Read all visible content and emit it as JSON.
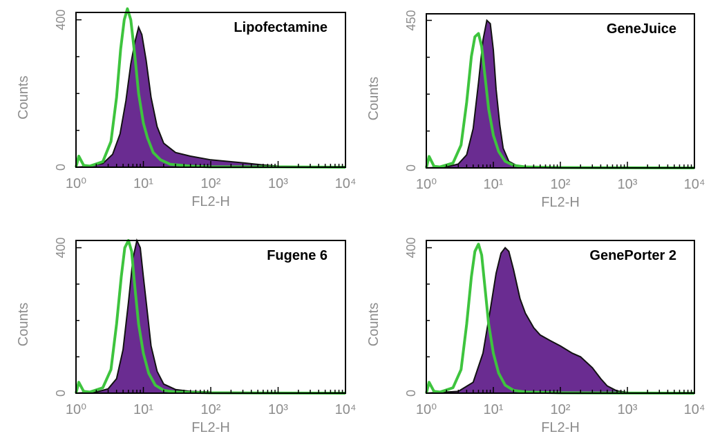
{
  "colors": {
    "filled": "#6a2c91",
    "outline": "#3ec43e",
    "axis": "#000000",
    "label": "#8c8c8c"
  },
  "chart_data": [
    {
      "type": "area",
      "title": "Lipofectamine",
      "xlabel": "FL2-H",
      "ylabel": "Counts",
      "xscale": "log",
      "xlim": [
        1,
        10000
      ],
      "ylim": [
        0,
        420
      ],
      "yticks": [
        0,
        400
      ],
      "xticks": [
        "10⁰",
        "10¹",
        "10²",
        "10³",
        "10⁴"
      ],
      "series": [
        {
          "style": "filled-purple",
          "x": [
            1,
            1.5,
            2.5,
            3.5,
            4.5,
            5.5,
            6.5,
            7.5,
            8.5,
            9.5,
            11,
            13,
            16,
            20,
            30,
            50,
            100,
            300,
            600,
            1000,
            3000,
            10000
          ],
          "values": [
            0,
            2,
            10,
            35,
            90,
            180,
            280,
            340,
            380,
            360,
            290,
            190,
            110,
            65,
            40,
            30,
            20,
            12,
            6,
            3,
            1,
            0
          ]
        },
        {
          "style": "outline-green",
          "x": [
            1,
            1.1,
            1.3,
            1.6,
            2.5,
            3.3,
            4,
            4.6,
            5.2,
            5.8,
            6.5,
            7.5,
            8.5,
            10,
            11.5,
            14,
            18,
            25,
            50,
            100,
            1000,
            10000
          ],
          "values": [
            0,
            30,
            5,
            3,
            15,
            70,
            190,
            320,
            400,
            430,
            400,
            300,
            200,
            120,
            80,
            40,
            20,
            8,
            3,
            1,
            1,
            0
          ]
        }
      ]
    },
    {
      "type": "area",
      "title": "GeneJuice",
      "xlabel": "FL2-H",
      "ylabel": "Counts",
      "xscale": "log",
      "xlim": [
        1,
        10000
      ],
      "ylim": [
        0,
        470
      ],
      "yticks": [
        0,
        450
      ],
      "xticks": [
        "10⁰",
        "10¹",
        "10²",
        "10³",
        "10⁴"
      ],
      "series": [
        {
          "style": "filled-purple",
          "x": [
            1,
            2,
            3,
            4,
            5,
            6,
            7,
            8,
            9,
            10,
            11,
            12.5,
            14,
            17,
            22,
            30,
            100,
            1000,
            10000
          ],
          "values": [
            0,
            3,
            12,
            40,
            120,
            260,
            390,
            450,
            440,
            360,
            240,
            130,
            60,
            20,
            8,
            3,
            2,
            1,
            0
          ]
        },
        {
          "style": "outline-green",
          "x": [
            1,
            1.1,
            1.3,
            1.6,
            2.5,
            3.3,
            4,
            4.7,
            5.3,
            6,
            6.7,
            7.5,
            8.5,
            10,
            12,
            15,
            20,
            30,
            100,
            10000
          ],
          "values": [
            0,
            35,
            5,
            3,
            15,
            70,
            200,
            340,
            400,
            410,
            370,
            280,
            180,
            100,
            50,
            20,
            8,
            3,
            1,
            0
          ]
        }
      ]
    },
    {
      "type": "area",
      "title": "Fugene 6",
      "xlabel": "FL2-H",
      "ylabel": "Counts",
      "xscale": "log",
      "xlim": [
        1,
        10000
      ],
      "ylim": [
        0,
        420
      ],
      "yticks": [
        0,
        400
      ],
      "xticks": [
        "10⁰",
        "10¹",
        "10²",
        "10³",
        "10⁴"
      ],
      "series": [
        {
          "style": "filled-purple",
          "x": [
            1,
            2,
            3,
            4,
            5,
            6,
            7,
            8,
            9,
            10,
            11.5,
            13,
            16,
            20,
            30,
            50,
            100,
            1000,
            10000
          ],
          "values": [
            0,
            3,
            12,
            40,
            120,
            250,
            370,
            420,
            400,
            320,
            220,
            130,
            60,
            25,
            10,
            5,
            3,
            1,
            0
          ]
        },
        {
          "style": "outline-green",
          "x": [
            1,
            1.1,
            1.3,
            1.6,
            2.5,
            3.3,
            4,
            4.7,
            5.3,
            6,
            6.7,
            7.5,
            8.5,
            10,
            12,
            15,
            20,
            30,
            100,
            10000
          ],
          "values": [
            0,
            30,
            5,
            3,
            15,
            65,
            190,
            320,
            400,
            420,
            390,
            290,
            190,
            110,
            55,
            22,
            8,
            3,
            1,
            0
          ]
        }
      ]
    },
    {
      "type": "area",
      "title": "GenePorter 2",
      "xlabel": "FL2-H",
      "ylabel": "Counts",
      "xscale": "log",
      "xlim": [
        1,
        10000
      ],
      "ylim": [
        0,
        420
      ],
      "yticks": [
        0,
        400
      ],
      "xticks": [
        "10⁰",
        "10¹",
        "10²",
        "10³",
        "10⁴"
      ],
      "series": [
        {
          "style": "filled-purple",
          "x": [
            1,
            3,
            5,
            7,
            9,
            11,
            13,
            15,
            17,
            20,
            25,
            30,
            40,
            50,
            70,
            100,
            150,
            200,
            300,
            400,
            500,
            700,
            1000,
            10000
          ],
          "values": [
            0,
            5,
            30,
            110,
            230,
            330,
            385,
            400,
            390,
            340,
            260,
            220,
            180,
            160,
            145,
            130,
            110,
            100,
            70,
            40,
            20,
            6,
            2,
            0
          ]
        },
        {
          "style": "outline-green",
          "x": [
            1,
            1.1,
            1.3,
            1.6,
            2.5,
            3.3,
            4,
            4.7,
            5.3,
            6,
            6.7,
            7.5,
            8.5,
            10,
            12,
            15,
            20,
            30,
            100,
            10000
          ],
          "values": [
            0,
            30,
            5,
            3,
            15,
            65,
            190,
            320,
            390,
            410,
            380,
            290,
            190,
            110,
            55,
            22,
            8,
            3,
            1,
            0
          ]
        }
      ]
    }
  ]
}
